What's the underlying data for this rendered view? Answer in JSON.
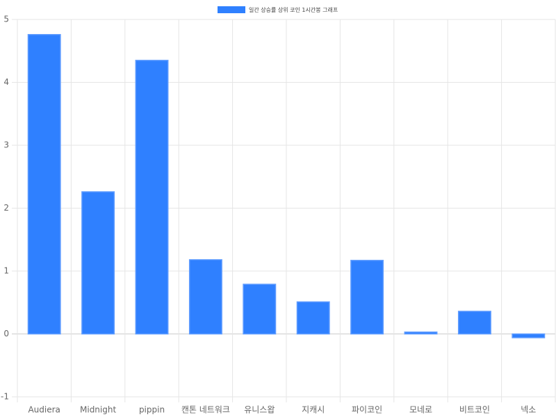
{
  "chart_data": {
    "type": "bar",
    "categories": [
      "Audiera",
      "Midnight",
      "pippin",
      "캔톤 네트워크",
      "유니스왑",
      "지캐시",
      "파이코인",
      "모네로",
      "비트코인",
      "넥소"
    ],
    "series": [
      {
        "name": "일간 상승률 상위 코인 1시간봉 그래프",
        "color": "#2f80ff",
        "values": [
          4.76,
          2.26,
          4.35,
          1.18,
          0.79,
          0.51,
          1.17,
          0.03,
          0.36,
          -0.06
        ]
      }
    ],
    "ylim": [
      -1,
      5
    ],
    "yticks": [
      -1,
      0,
      1,
      2,
      3,
      4,
      5
    ],
    "grid": true,
    "legend": "top"
  }
}
